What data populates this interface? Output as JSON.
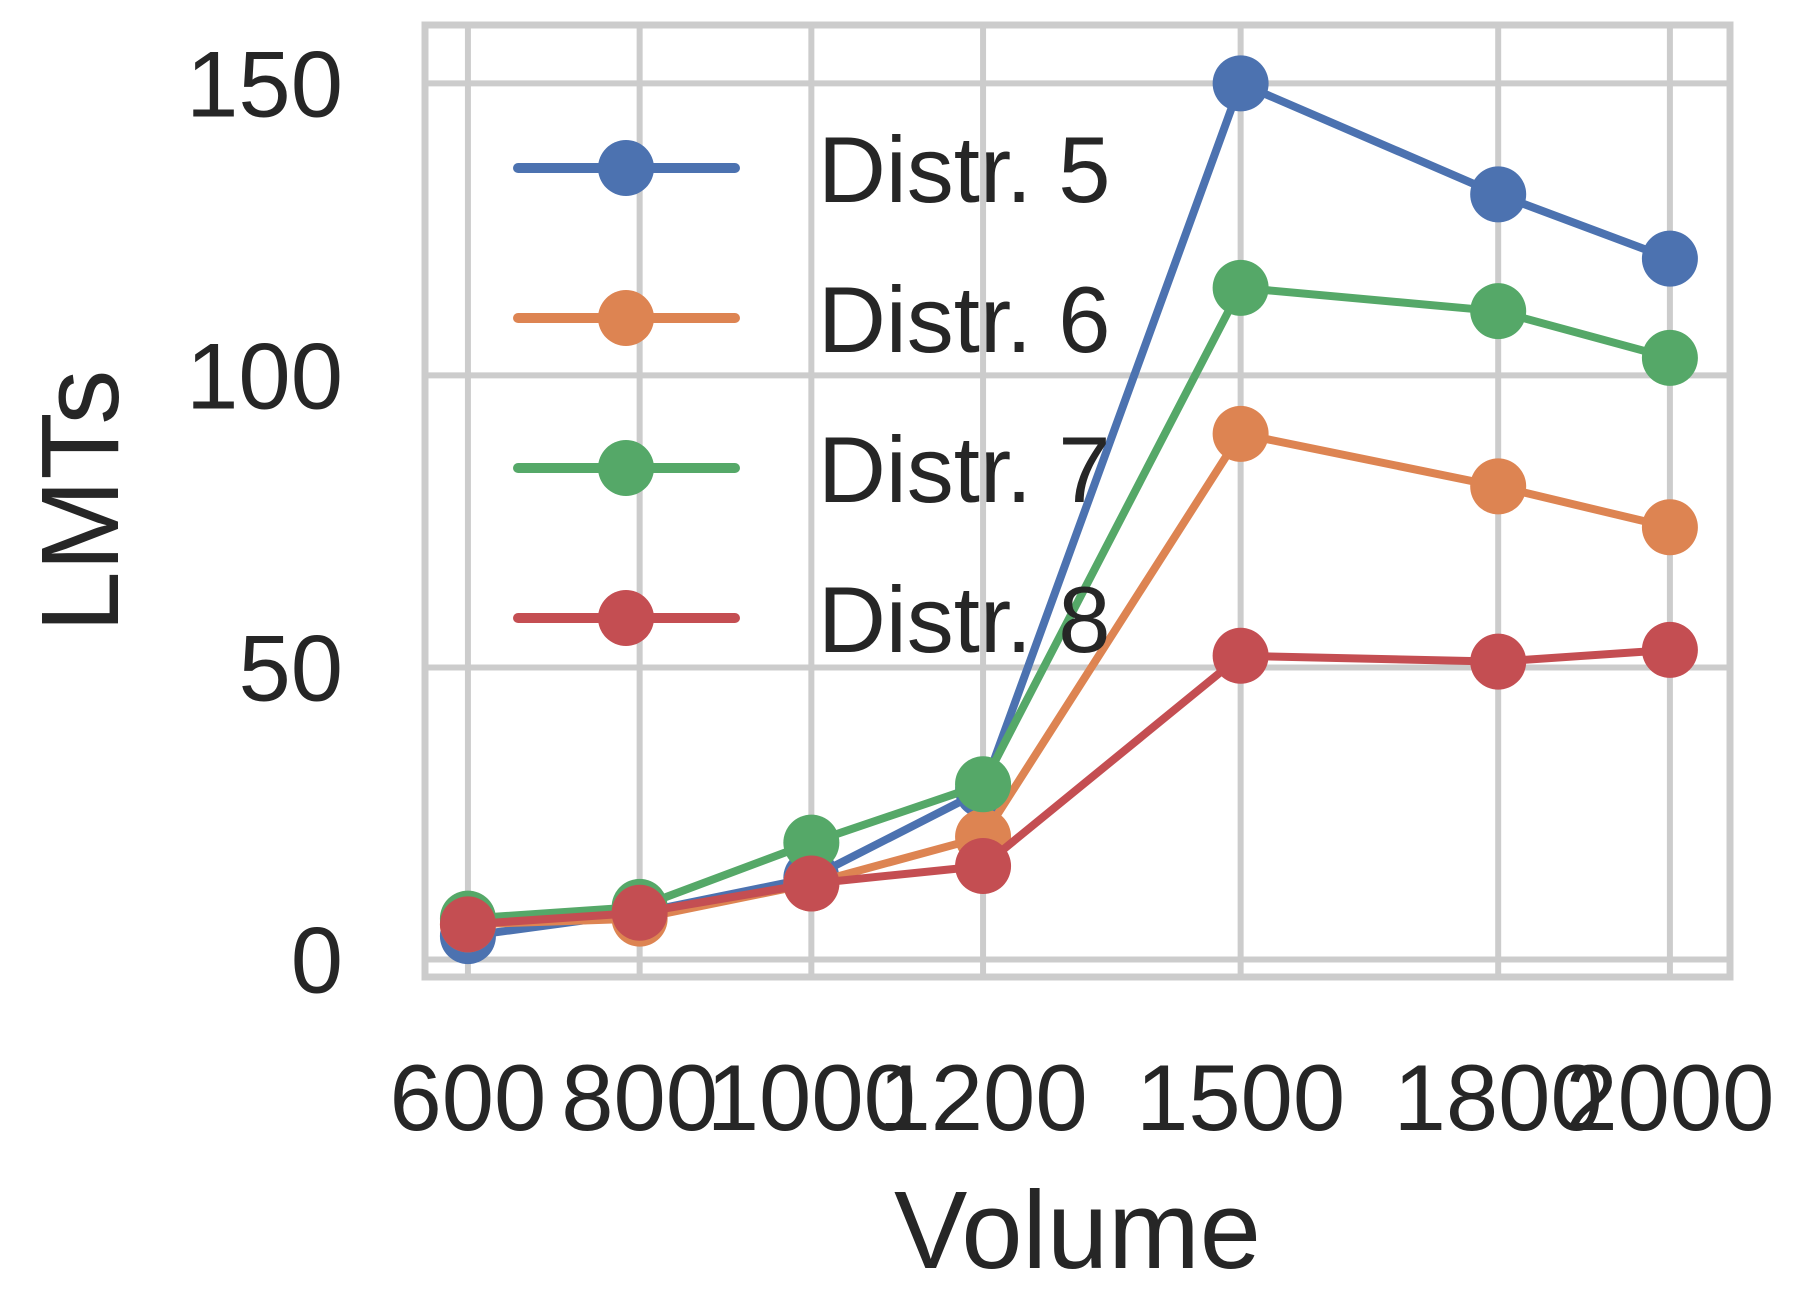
{
  "chart_data": {
    "type": "line",
    "xlabel": "Volume",
    "ylabel": "LMTs",
    "x": [
      600,
      800,
      1000,
      1200,
      1500,
      1800,
      2000
    ],
    "x_tick_labels": [
      "600",
      "800",
      "1000",
      "1200",
      "1500",
      "1800",
      "2000"
    ],
    "y_ticks": [
      0,
      50,
      100,
      150
    ],
    "y_tick_labels": [
      "0",
      "50",
      "100",
      "150"
    ],
    "xlim": [
      550,
      2070
    ],
    "ylim": [
      -3,
      160
    ],
    "grid": true,
    "legend_position": "upper-left",
    "series": [
      {
        "name": "Distr. 5",
        "color": "#4c72b0",
        "values": [
          4,
          8,
          14,
          29,
          150,
          131,
          120
        ]
      },
      {
        "name": "Distr. 6",
        "color": "#dd8452",
        "values": [
          6,
          7,
          13,
          21,
          90,
          81,
          74
        ]
      },
      {
        "name": "Distr. 7",
        "color": "#55a868",
        "values": [
          7,
          9,
          20,
          30,
          115,
          111,
          103
        ]
      },
      {
        "name": "Distr. 8",
        "color": "#c44e52",
        "values": [
          6,
          8,
          13,
          16,
          52,
          51,
          53
        ]
      }
    ]
  }
}
